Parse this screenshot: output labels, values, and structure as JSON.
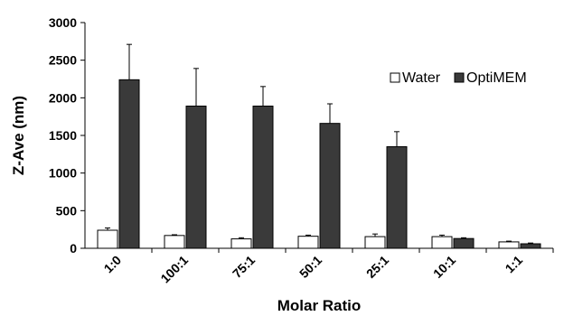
{
  "chart_data": {
    "type": "bar",
    "xlabel": "Molar Ratio",
    "ylabel": "Z-Ave (nm)",
    "ylim": [
      0,
      3000
    ],
    "yticks": [
      0,
      500,
      1000,
      1500,
      2000,
      2500,
      3000
    ],
    "categories": [
      "1:0",
      "100:1",
      "75:1",
      "50:1",
      "25:1",
      "10:1",
      "1:1"
    ],
    "grid": false,
    "legend": "top-right",
    "series": [
      {
        "name": "Water",
        "color": "#ffffff",
        "values": [
          240,
          170,
          125,
          160,
          155,
          155,
          85
        ],
        "errors": [
          30,
          10,
          15,
          15,
          35,
          20,
          10
        ]
      },
      {
        "name": "OptiMEM",
        "color": "#3a3a3a",
        "values": [
          2240,
          1890,
          1890,
          1660,
          1350,
          130,
          60
        ],
        "errors": [
          470,
          500,
          260,
          260,
          200,
          10,
          10
        ]
      }
    ]
  }
}
